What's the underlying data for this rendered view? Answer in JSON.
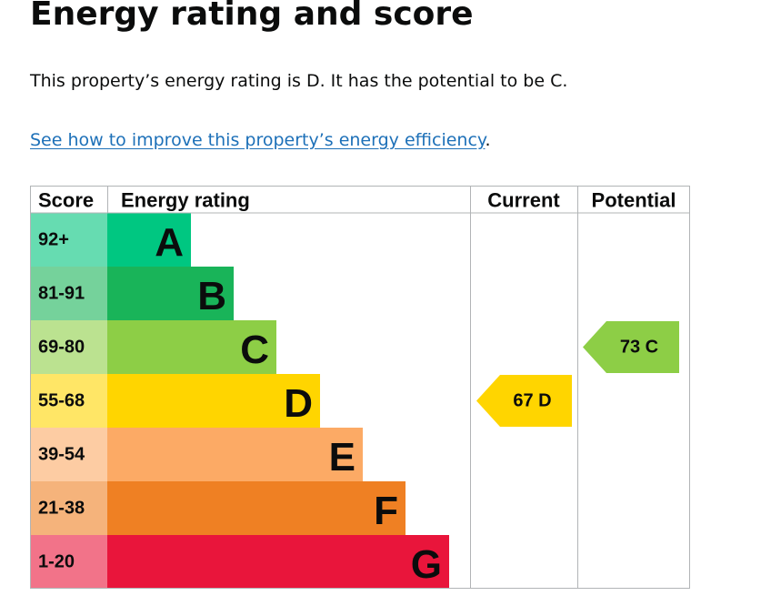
{
  "page": {
    "title": "Energy rating and score",
    "summary": "This property’s energy rating is D. It has the potential to be C.",
    "link_text": "See how to improve this property’s energy efficiency",
    "link_suffix": "."
  },
  "chart_data": {
    "type": "table",
    "columns": [
      "Score",
      "Energy rating",
      "Current",
      "Potential"
    ],
    "bands": [
      {
        "letter": "A",
        "score_range": "92+",
        "color": "#00c781",
        "score_bg": "#66dcb1"
      },
      {
        "letter": "B",
        "score_range": "81-91",
        "color": "#19b459",
        "score_bg": "#75d29b"
      },
      {
        "letter": "C",
        "score_range": "69-80",
        "color": "#8dce46",
        "score_bg": "#bbe290"
      },
      {
        "letter": "D",
        "score_range": "55-68",
        "color": "#ffd500",
        "score_bg": "#ffe666"
      },
      {
        "letter": "E",
        "score_range": "39-54",
        "color": "#fcaa65",
        "score_bg": "#fdcca3"
      },
      {
        "letter": "F",
        "score_range": "21-38",
        "color": "#ef8023",
        "score_bg": "#f5b37b"
      },
      {
        "letter": "G",
        "score_range": "1-20",
        "color": "#e9153b",
        "score_bg": "#f27389"
      }
    ],
    "current": {
      "score": 67,
      "band": "D",
      "label": "67  D"
    },
    "potential": {
      "score": 73,
      "band": "C",
      "label": "73  C"
    }
  }
}
